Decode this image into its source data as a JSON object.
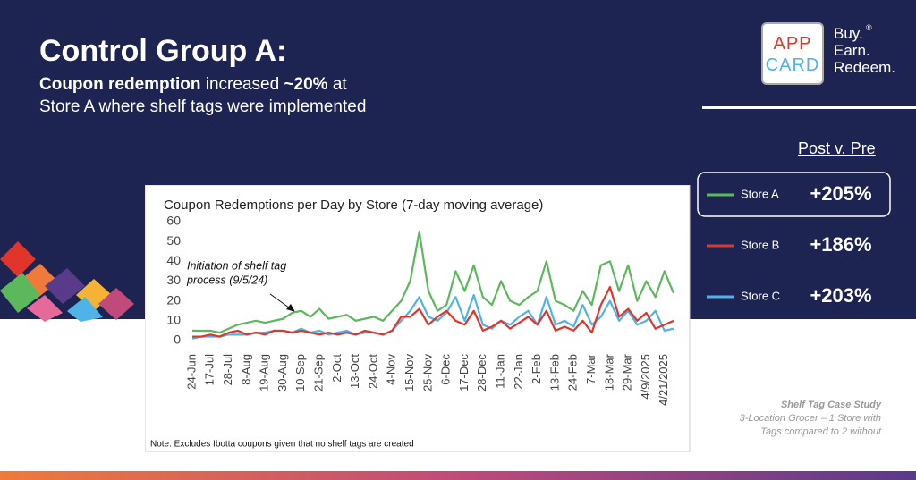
{
  "header": {
    "title": "Control Group A:",
    "subtitle": [
      {
        "text": "Coupon redemption",
        "bold": true
      },
      {
        "text": " increased ",
        "bold": false
      },
      {
        "text": "~20%",
        "bold": true
      },
      {
        "text": " at Store A where shelf tags were implemented",
        "bold": false
      }
    ]
  },
  "logo": {
    "line1": "APP",
    "line2": "CARD",
    "tagline": [
      "Buy.",
      "Earn.",
      "Redeem."
    ],
    "mark": "®"
  },
  "summary": {
    "title": "Post v. Pre",
    "changes": [
      "+205%",
      "+186%",
      "+203%"
    ]
  },
  "footer": {
    "title": "Shelf Tag Case Study",
    "lines": [
      "3-Location Grocer – 1 Store with",
      "Tags compared to 2 without"
    ]
  },
  "chart_data": {
    "type": "line",
    "title": "Coupon Redemptions per Day by Store (7-day moving average)",
    "annotation": [
      "Initiation of shelf tag",
      "process (9/5/24)"
    ],
    "note": "Note: Excludes Ibotta coupons given that no shelf tags are created",
    "categories": [
      "24-Jun",
      null,
      "17-Jul",
      null,
      "28-Jul",
      null,
      "8-Aug",
      null,
      "19-Aug",
      null,
      "30-Aug",
      null,
      "10-Sep",
      null,
      "21-Sep",
      null,
      "2-Oct",
      null,
      "13-Oct",
      null,
      "24-Oct",
      null,
      "4-Nov",
      null,
      "15-Nov",
      null,
      "25-Nov",
      null,
      "6-Dec",
      null,
      "17-Dec",
      null,
      "28-Dec",
      null,
      "11-Jan",
      null,
      "22-Jan",
      null,
      "2-Feb",
      null,
      "13-Feb",
      null,
      "24-Feb",
      null,
      "7-Mar",
      null,
      "18-Mar",
      null,
      "29-Mar",
      null,
      "4/9/2025",
      null,
      "4/21/2025",
      null
    ],
    "series": [
      {
        "name": "Store A",
        "color": "#5cb85c",
        "values": [
          5,
          5,
          5,
          4,
          6,
          8,
          9,
          10,
          9,
          10,
          11,
          14,
          15,
          12,
          16,
          11,
          12,
          13,
          10,
          11,
          12,
          10,
          15,
          20,
          30,
          55,
          25,
          15,
          18,
          35,
          25,
          38,
          22,
          18,
          30,
          20,
          18,
          22,
          25,
          40,
          20,
          18,
          15,
          25,
          18,
          38,
          40,
          25,
          38,
          20,
          30,
          22,
          35,
          24
        ]
      },
      {
        "name": "Store B",
        "color": "#e0352b",
        "values": [
          2,
          2,
          3,
          2,
          4,
          5,
          3,
          4,
          3,
          5,
          5,
          4,
          5,
          4,
          3,
          4,
          3,
          4,
          3,
          5,
          4,
          3,
          5,
          12,
          12,
          16,
          8,
          12,
          15,
          10,
          8,
          15,
          5,
          7,
          10,
          6,
          9,
          12,
          8,
          15,
          5,
          7,
          5,
          10,
          4,
          18,
          27,
          12,
          16,
          10,
          14,
          6,
          8,
          10
        ]
      },
      {
        "name": "Store C",
        "color": "#4fb3e8",
        "values": [
          1,
          2,
          2,
          2,
          3,
          3,
          3,
          4,
          4,
          5,
          5,
          4,
          6,
          4,
          5,
          3,
          4,
          5,
          3,
          4,
          4,
          3,
          5,
          10,
          15,
          22,
          12,
          10,
          14,
          22,
          10,
          23,
          8,
          6,
          10,
          8,
          12,
          15,
          8,
          22,
          8,
          10,
          7,
          18,
          8,
          12,
          20,
          10,
          15,
          8,
          10,
          15,
          5,
          6
        ]
      }
    ],
    "ylim": [
      0,
      60
    ],
    "yticks": [
      0,
      10,
      20,
      30,
      40,
      50,
      60
    ]
  }
}
